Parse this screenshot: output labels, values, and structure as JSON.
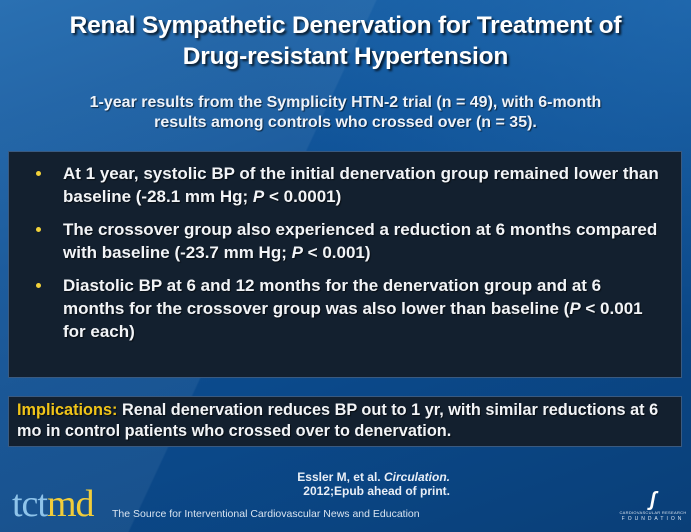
{
  "slide": {
    "title": "Renal Sympathetic Denervation for Treatment of Drug-resistant Hypertension",
    "title_line1": "Renal Sympathetic Denervation for Treatment of",
    "title_line2": "Drug-resistant Hypertension",
    "subtitle_line1": "1-year results from the Symplicity HTN-2 trial (n = 49), with 6-month",
    "subtitle_line2": "results among controls who crossed over (n = 35).",
    "bullets": [
      {
        "pre": "At 1 year, systolic BP of the initial denervation group remained lower than baseline (-28.1 mm Hg; ",
        "italic": "P",
        "post": " < 0.0001)"
      },
      {
        "pre": "The crossover group also experienced a reduction at 6 months compared with baseline (-23.7 mm Hg; ",
        "italic": "P",
        "post": " < 0.001)"
      },
      {
        "pre": "Diastolic BP at 6 and 12 months for the denervation group and at 6 months for the crossover group was also lower than baseline (",
        "italic": "P",
        "post": " < 0.001 for each)"
      }
    ],
    "implications": {
      "label": "Implications:",
      "text": " Renal denervation reduces BP out to 1 yr, with similar reductions at 6 mo in control patients who crossed over to denervation."
    },
    "citation": {
      "authors": "Essler M, et al. ",
      "journal": "Circulation.",
      "details": "2012;Epub ahead of print."
    }
  },
  "footer": {
    "logo_tct": "tct",
    "logo_md": "md",
    "tagline": "The Source for Interventional Cardiovascular News and Education",
    "crf_mark": "ʃ",
    "crf_line1": "CARDIOVASCULAR RESEARCH",
    "crf_line2": "FOUNDATION"
  },
  "colors": {
    "accent_yellow": "#f0c419",
    "box_bg": "#13202f",
    "background_blue": "#0f5297"
  }
}
